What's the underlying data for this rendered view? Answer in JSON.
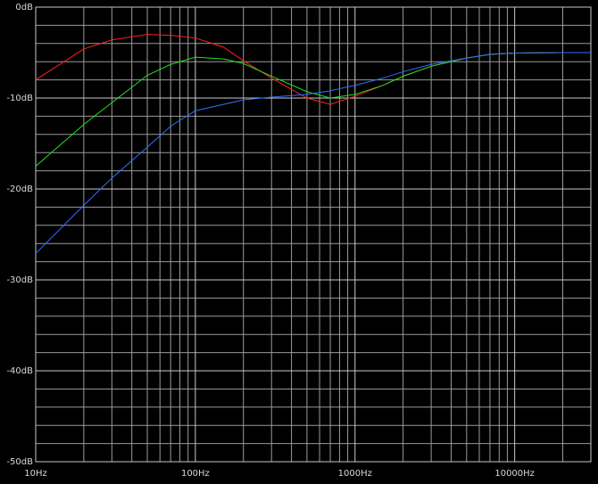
{
  "chart_data": {
    "type": "line",
    "xscale": "log",
    "x": [
      10,
      20,
      30,
      50,
      70,
      100,
      150,
      200,
      300,
      500,
      700,
      1000,
      1500,
      2000,
      3000,
      5000,
      7000,
      10000,
      20000,
      30000
    ],
    "series": [
      {
        "color": "#ff2020",
        "values": [
          -8.0,
          -4.6,
          -3.6,
          -3.0,
          -3.1,
          -3.4,
          -4.4,
          -5.9,
          -7.8,
          -10.0,
          -10.7,
          -9.8,
          -8.6,
          -7.6,
          -6.5,
          -5.6,
          -5.2,
          -5.05,
          -5.0,
          -5.0
        ]
      },
      {
        "color": "#20e020",
        "values": [
          -17.5,
          -12.9,
          -10.5,
          -7.5,
          -6.3,
          -5.5,
          -5.7,
          -6.2,
          -7.6,
          -9.3,
          -10.0,
          -9.6,
          -8.6,
          -7.6,
          -6.5,
          -5.6,
          -5.2,
          -5.05,
          -5.0,
          -5.0
        ]
      },
      {
        "color": "#3070ff",
        "values": [
          -27.1,
          -21.8,
          -18.8,
          -15.4,
          -13.1,
          -11.4,
          -10.7,
          -10.2,
          -9.9,
          -9.6,
          -9.2,
          -8.6,
          -7.8,
          -7.1,
          -6.3,
          -5.6,
          -5.2,
          -5.05,
          -5.0,
          -5.0
        ]
      }
    ],
    "xlim": [
      10,
      30000
    ],
    "ylim": [
      -50,
      0
    ],
    "xticks": [
      {
        "value": 10,
        "label": "10Hz"
      },
      {
        "value": 100,
        "label": "100Hz"
      },
      {
        "value": 1000,
        "label": "1000Hz"
      },
      {
        "value": 10000,
        "label": "10000Hz"
      }
    ],
    "yticks": [
      {
        "value": 0,
        "label": "0dB"
      },
      {
        "value": -10,
        "label": "-10dB"
      },
      {
        "value": -20,
        "label": "-20dB"
      },
      {
        "value": -30,
        "label": "-30dB"
      },
      {
        "value": -40,
        "label": "-40dB"
      },
      {
        "value": -50,
        "label": "-50dB"
      }
    ],
    "xgrid": [
      20,
      30,
      40,
      50,
      60,
      70,
      80,
      90,
      200,
      300,
      400,
      500,
      600,
      700,
      800,
      900,
      2000,
      3000,
      4000,
      5000,
      6000,
      7000,
      8000,
      9000,
      20000
    ],
    "ygrid": [
      -2,
      -4,
      -6,
      -8,
      -12,
      -14,
      -16,
      -18,
      -22,
      -24,
      -26,
      -28,
      -32,
      -34,
      -36,
      -38,
      -42,
      -44,
      -46,
      -48
    ],
    "grid": true
  }
}
